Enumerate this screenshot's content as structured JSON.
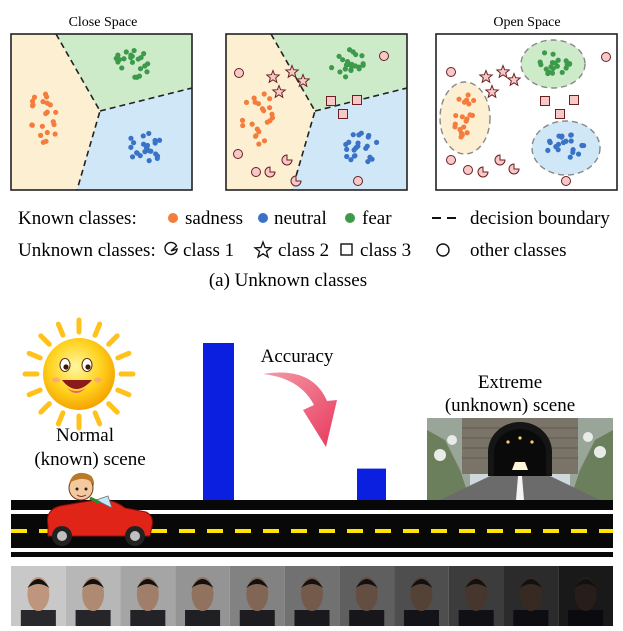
{
  "panel_a": {
    "titles": {
      "close_space": "Close Space",
      "open_space": "Open Space"
    },
    "caption": "(a) Unknown classes",
    "legend": {
      "known_label": "Known classes:",
      "known": [
        {
          "name": "sadness",
          "color": "#f47c3c"
        },
        {
          "name": "neutral",
          "color": "#3a72c8"
        },
        {
          "name": "fear",
          "color": "#3c9a4a"
        }
      ],
      "boundary_label": "decision boundary",
      "unknown_label": "Unknown classes:",
      "unknown": [
        {
          "name": "class 1",
          "icon": "pacman-icon"
        },
        {
          "name": "class 2",
          "icon": "star-icon"
        },
        {
          "name": "class 3",
          "icon": "square-icon"
        },
        {
          "name": "other classes",
          "icon": "circle-icon"
        }
      ]
    },
    "region_colors": {
      "sadness": "#fdf0d2",
      "neutral": "#cfe7f7",
      "fear": "#cdebc9"
    }
  },
  "panel_b": {
    "accuracy_label": "Accuracy",
    "normal_scene_label_1": "Normal",
    "normal_scene_label_2": "(known) scene",
    "extreme_scene_label_1": "Extreme",
    "extreme_scene_label_2": "(unknown) scene",
    "bar_color": "#0b1fe0",
    "bars": [
      {
        "scene": "normal",
        "value": 1.0
      },
      {
        "scene": "extreme",
        "value": 0.2
      }
    ],
    "face_strip_count": 11
  }
}
